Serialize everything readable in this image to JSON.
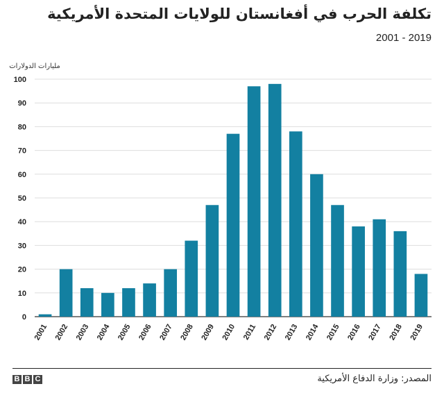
{
  "chart_data": {
    "type": "bar",
    "title": "تكلفة الحرب في أفغانستان للولايات المتحدة الأمريكية",
    "subtitle": "2001 - 2019",
    "ylabel": "مليارات الدولارات",
    "xlabel": "",
    "ylim": [
      0,
      100
    ],
    "yticks": [
      0,
      10,
      20,
      30,
      40,
      50,
      60,
      70,
      80,
      90,
      100
    ],
    "grid": true,
    "categories": [
      "2001",
      "2002",
      "2003",
      "2004",
      "2005",
      "2006",
      "2007",
      "2008",
      "2009",
      "2010",
      "2011",
      "2012",
      "2013",
      "2014",
      "2015",
      "2016",
      "2017",
      "2018",
      "2019"
    ],
    "values": [
      1,
      20,
      12,
      10,
      12,
      14,
      20,
      32,
      47,
      77,
      97,
      98,
      78,
      60,
      47,
      38,
      41,
      36,
      18
    ],
    "bar_color": "#1380a1"
  },
  "footer": {
    "source": "المصدر: وزارة الدفاع الأمريكية",
    "logo": [
      "B",
      "B",
      "C"
    ]
  }
}
